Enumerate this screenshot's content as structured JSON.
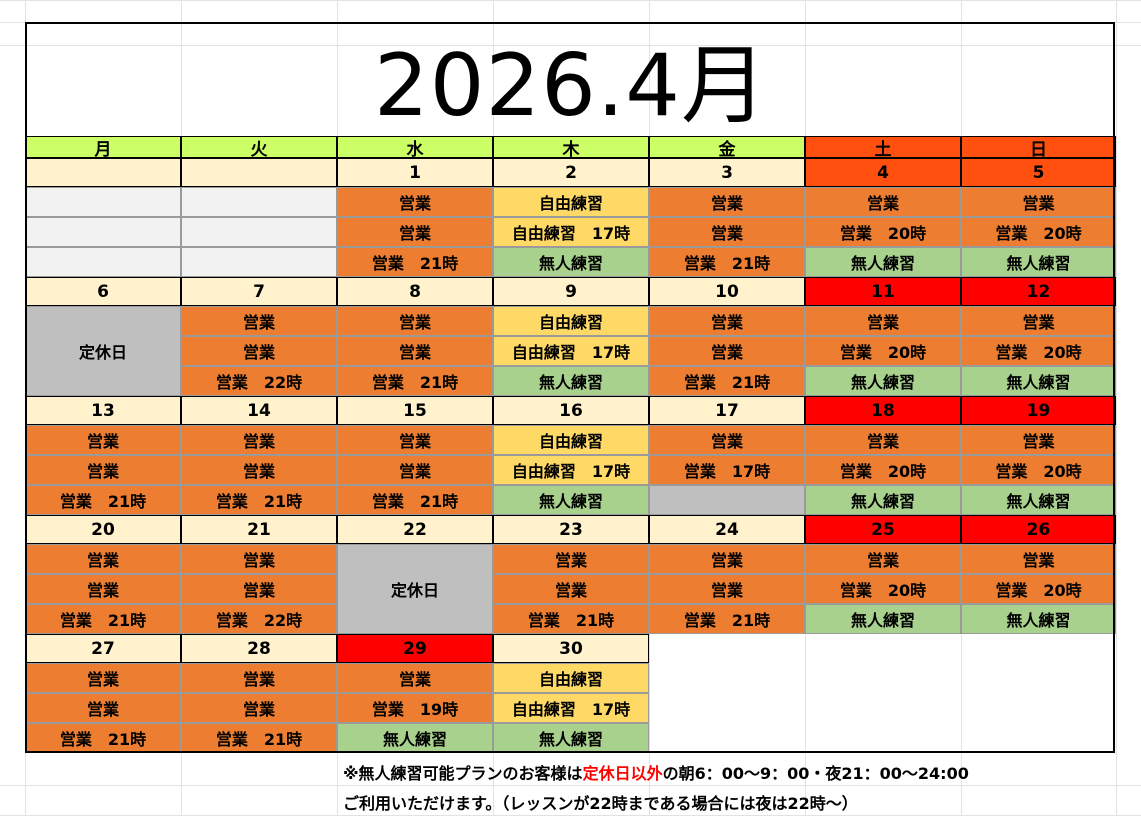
{
  "title": "2026.4月",
  "colors": {
    "weekday_header": "#ccff66",
    "weekend_header": "#ff5010",
    "date_cell": "#fff2cc",
    "holiday_date": "#ff0000",
    "business": "#ed7d31",
    "free_practice": "#ffd966",
    "unmanned": "#a9d18e",
    "closed": "#bfbfbf",
    "blank": "#f2f2f2"
  },
  "weekdays": [
    "月",
    "火",
    "水",
    "木",
    "金",
    "土",
    "日"
  ],
  "labels": {
    "business": "営業",
    "free_practice": "自由練習",
    "unmanned": "無人練習",
    "closed": "定休日"
  },
  "weeks": [
    {
      "dates": [
        "",
        "",
        "1",
        "2",
        "3",
        "4",
        "5"
      ],
      "date_styles": [
        "blank",
        "blank",
        "normal",
        "normal",
        "normal",
        "weekend",
        "weekend"
      ],
      "rows": [
        [
          "",
          "",
          "営業",
          "自由練習",
          "営業",
          "営業",
          "営業"
        ],
        [
          "",
          "",
          "営業",
          "自由練習　17時",
          "営業",
          "営業　20時",
          "営業　20時"
        ],
        [
          "",
          "",
          "営業　21時",
          "無人練習",
          "営業　21時",
          "無人練習",
          "無人練習"
        ]
      ],
      "row_styles": [
        [
          "blank",
          "blank",
          "business",
          "free",
          "business",
          "business",
          "business"
        ],
        [
          "blank",
          "blank",
          "business",
          "free",
          "business",
          "business",
          "business"
        ],
        [
          "blank",
          "blank",
          "business",
          "unmanned",
          "business",
          "unmanned",
          "unmanned"
        ]
      ]
    },
    {
      "dates": [
        "6",
        "7",
        "8",
        "9",
        "10",
        "11",
        "12"
      ],
      "date_styles": [
        "normal",
        "normal",
        "normal",
        "normal",
        "normal",
        "holiday",
        "holiday"
      ],
      "rows": [
        [
          "定休日",
          "営業",
          "営業",
          "自由練習",
          "営業",
          "営業",
          "営業"
        ],
        [
          "",
          "営業",
          "営業",
          "自由練習　17時",
          "営業",
          "営業　20時",
          "営業　20時"
        ],
        [
          "",
          "営業　22時",
          "営業　21時",
          "無人練習",
          "営業　21時",
          "無人練習",
          "無人練習"
        ]
      ],
      "row_styles": [
        [
          "closed",
          "business",
          "business",
          "free",
          "business",
          "business",
          "business"
        ],
        [
          "closed",
          "business",
          "business",
          "free",
          "business",
          "business",
          "business"
        ],
        [
          "closed",
          "business",
          "business",
          "unmanned",
          "business",
          "unmanned",
          "unmanned"
        ]
      ]
    },
    {
      "dates": [
        "13",
        "14",
        "15",
        "16",
        "17",
        "18",
        "19"
      ],
      "date_styles": [
        "normal",
        "normal",
        "normal",
        "normal",
        "normal",
        "holiday",
        "holiday"
      ],
      "rows": [
        [
          "営業",
          "営業",
          "営業",
          "自由練習",
          "営業",
          "営業",
          "営業"
        ],
        [
          "営業",
          "営業",
          "営業",
          "自由練習　17時",
          "営業　17時",
          "営業　20時",
          "営業　20時"
        ],
        [
          "営業　21時",
          "営業　21時",
          "営業　21時",
          "無人練習",
          "",
          "無人練習",
          "無人練習"
        ]
      ],
      "row_styles": [
        [
          "business",
          "business",
          "business",
          "free",
          "business",
          "business",
          "business"
        ],
        [
          "business",
          "business",
          "business",
          "free",
          "business",
          "business",
          "business"
        ],
        [
          "business",
          "business",
          "business",
          "unmanned",
          "closed",
          "unmanned",
          "unmanned"
        ]
      ]
    },
    {
      "dates": [
        "20",
        "21",
        "22",
        "23",
        "24",
        "25",
        "26"
      ],
      "date_styles": [
        "normal",
        "normal",
        "normal",
        "normal",
        "normal",
        "holiday",
        "holiday"
      ],
      "rows": [
        [
          "営業",
          "営業",
          "定休日",
          "営業",
          "営業",
          "営業",
          "営業"
        ],
        [
          "営業",
          "営業",
          "",
          "営業",
          "営業",
          "営業　20時",
          "営業　20時"
        ],
        [
          "営業　21時",
          "営業　22時",
          "",
          "営業　21時",
          "営業　21時",
          "無人練習",
          "無人練習"
        ]
      ],
      "row_styles": [
        [
          "business",
          "business",
          "closed",
          "business",
          "business",
          "business",
          "business"
        ],
        [
          "business",
          "business",
          "closed",
          "business",
          "business",
          "business",
          "business"
        ],
        [
          "business",
          "business",
          "closed",
          "business",
          "business",
          "unmanned",
          "unmanned"
        ]
      ]
    },
    {
      "dates": [
        "27",
        "28",
        "29",
        "30",
        "",
        "",
        ""
      ],
      "date_styles": [
        "normal",
        "normal",
        "holiday",
        "normal",
        "none",
        "none",
        "none"
      ],
      "rows": [
        [
          "営業",
          "営業",
          "営業",
          "自由練習",
          "",
          "",
          ""
        ],
        [
          "営業",
          "営業",
          "営業　19時",
          "自由練習　17時",
          "",
          "",
          ""
        ],
        [
          "営業　21時",
          "営業　21時",
          "無人練習",
          "無人練習",
          "",
          "",
          ""
        ]
      ],
      "row_styles": [
        [
          "business",
          "business",
          "business",
          "free",
          "none",
          "none",
          "none"
        ],
        [
          "business",
          "business",
          "business",
          "free",
          "none",
          "none",
          "none"
        ],
        [
          "business",
          "business",
          "unmanned",
          "unmanned",
          "none",
          "none",
          "none"
        ]
      ]
    }
  ],
  "notes": {
    "line1_prefix": "※無人練習可能プランのお客様は",
    "line1_highlight": "定休日以外",
    "line1_suffix": "の朝6：00～9：00・夜21：00～24:00",
    "line2": "ご利用いただけます。（レッスンが22時まである場合には夜は22時～）"
  }
}
